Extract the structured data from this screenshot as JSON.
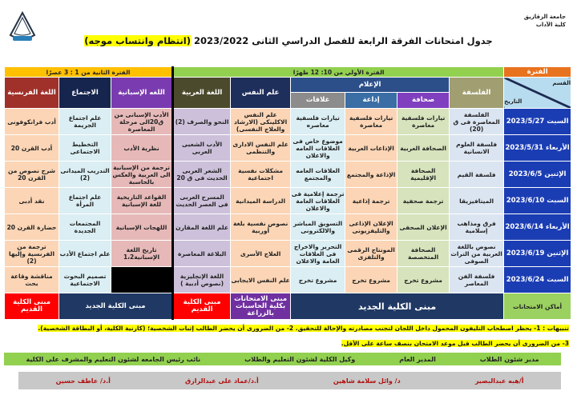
{
  "header": {
    "university": "جامعة الزقازيق",
    "faculty": "كلية الآداب",
    "title": "جدول امتحانات الفرقة الرابعة للفصل الدراسي الثانى 2023/2022",
    "title_highlight": "(انتظام وانتساب موجه)"
  },
  "periods": {
    "label": "الفترة",
    "first": "الفترة الأولي من 10: 12 ظهرًا",
    "second": "الفترة الثانية من 1 : 3 عصرًا"
  },
  "corner": {
    "dept": "القسم",
    "date": "التاريخ"
  },
  "media_group": "الإعلام",
  "columns": [
    "الفلسفة",
    "صحافة",
    "إذاعة",
    "علاقات",
    "علم النفس",
    "اللغة العربية",
    "اللغه الإسبانية",
    "الاجتماع",
    "اللغة الفرنسية"
  ],
  "rows": [
    {
      "date": "السبت 2023/5/27",
      "cells": [
        "الفلسفة المعاصرة فى ق (20)",
        "تيارات فلسفية معاصرة",
        "تيارات فلسفية معاصرة",
        "تيارات فلسفية معاصره",
        "علم النفس الاكلينكى (الارشاد والعلاج النفسى)",
        "النحو والصرف (2)",
        "الأدب الإسبانى من ق20الى مرحلة المعاصرة",
        "علم اجتماع الجريمة",
        "أدب فرانكوفونى"
      ]
    },
    {
      "date": "الأربعاء 2023/5/31",
      "cells": [
        "فلسفة العلوم الانسانية",
        "الصحافة العربية",
        "الإذاعات العربية",
        "موضوع خاص فى العلاقات العامه والاعلان",
        "علم النفس الادارى والتنظمى",
        "الأدب الشعبى العربى",
        "نظرية الأدب",
        "التخطيط الاجتماعى",
        "أدب القرن 20"
      ]
    },
    {
      "date": "الإثنين 2023/6/5",
      "cells": [
        "فلسفة القيم",
        "الصحافة الإقليمية",
        "الإذاعة والمجتمع",
        "العلاقات العامه والمجتمع",
        "مشكلات نفسية اجتماعية",
        "الشعر العربى الحديث فى ق 20",
        "ترجمة من الإسبانية الى العربية والعكس بالحاسبة",
        "التدريب الميدانى (2)",
        "شرح نصوص من القرن 20"
      ]
    },
    {
      "date": "السبت 2023/6/10",
      "cells": [
        "الميتافيزيقا",
        "ترجمة صحفية",
        "ترجمة إذاعية",
        "ترجمة إعلامية فى العلاقات العامة والاعلان",
        "الدراسة الميدانية",
        "المسرح العربى فى العصر الحديث",
        "القواعد التاريخية للغة الإسبانية",
        "علم اجتماع المرأة",
        "نقد أدبى"
      ]
    },
    {
      "date": "الأربعاء 2023/6/14",
      "cells": [
        "فرق ومذاهب إسلامية",
        "الإعلان الصحفى",
        "الإعلان الإذاعى والتليفزيونى",
        "التسويق المباشر والالكترونى",
        "نصوص نفسية بلغة أوربية",
        "علم اللغة المقارن",
        "اللهجات الإسبانية",
        "المجتمعات الجديدة",
        "حضارة القرن 20"
      ]
    },
    {
      "date": "الإثنين 2023/6/19",
      "cells": [
        "نصوص باللغة العربية من التراث الصوفى",
        "الصحافة المتخصصة",
        "المونتاج الرقمى والتلفزى",
        "التحرير والاخراج فى العلاقات العامة والاعلان",
        "العلاج الأسرى",
        "البلاغة المعاصرة",
        "تاريخ اللغة الإسبانية1،2",
        "علم اجتماع الأدب",
        "ترجمة من الفرنسية وإليها (2)"
      ]
    },
    {
      "date": "السبت 2023/6/24",
      "cells": [
        "فلسفة الفن المعاصر",
        "مشروع تخرج",
        "مشروع تخرج",
        "مشروع تخرج",
        "علم النفس الايجابى",
        "اللغة الإنجليزية (نصوص أدبية )",
        "",
        "تصميم البحوث الاجتماعية",
        "مناقشة وقاعة بحث"
      ]
    }
  ],
  "places": {
    "label": "أماكن الامتحانات",
    "new_building": "مبنى الكلية الجديد",
    "computers": "مبنى الامتحانات بكلية الحاسبات بالزراعة",
    "old_building": "مبنى الكلية القديم",
    "new_building_2": "مبنى الكلية الجديد",
    "old_building_2": "مبنى الكلية القديم"
  },
  "notes": {
    "line1": "تنبيهات : 1- يحظر اصطحاب التليفون المحمول داخل اللجان لتجنب مصادرته والإحالة للتحقيق. 2- من الضرورى أن يحضر الطالب إثبات الشخصية؛ (كارنية الكلية، أو البطاقة الشخصية).",
    "line2": "3- من الضرورى أن يحضر الطالب قبل موعد الامتحان بنصف ساعة على الأقل."
  },
  "signatures": {
    "titles": [
      "مدير شئون الطلاب",
      "المدير العام",
      "وكيل الكلية لشئون التعليم والطلاب",
      "نائب رئيس الجامعه لشئون التعليم والمشرف على الكلية"
    ],
    "names": [
      "أ/هبه عبدالبصير",
      "د/ وائل سلامة شاهين",
      "أ.د/عماد على عبدالرازق",
      "أ.د/ عاطف حسين"
    ]
  },
  "colors": {
    "date_col": "#1b3db4",
    "period_label": "#e8731f",
    "first_period": "#92d050",
    "second_period": "#ffc000",
    "building_new": "#1f3864",
    "building_old": "#ff0000",
    "building_computers": "#7030a0"
  }
}
